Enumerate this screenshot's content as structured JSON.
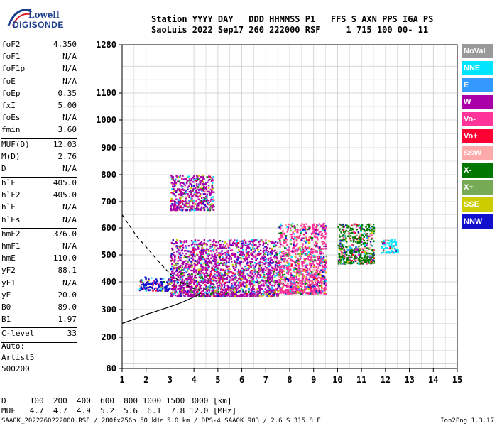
{
  "logo": {
    "line1": "Lowell",
    "line2": "DIGISONDE"
  },
  "header": {
    "line1": "Station YYYY DAY   DDD HHMMSS P1   FFS S AXN PPS IGA PS",
    "line2": "SaoLuis 2022 Sep17 260 222000 RSF     1 715 100 00- 11"
  },
  "params": [
    {
      "k": "foF2",
      "v": "4.350"
    },
    {
      "k": "foF1",
      "v": "N/A"
    },
    {
      "k": "foF1p",
      "v": "N/A"
    },
    {
      "k": "foE",
      "v": "N/A"
    },
    {
      "k": "foEp",
      "v": "0.35"
    },
    {
      "k": "fxI",
      "v": "5.00"
    },
    {
      "k": "foEs",
      "v": "N/A"
    },
    {
      "k": "fmin",
      "v": "3.60"
    },
    {
      "sep": true
    },
    {
      "k": "MUF(D)",
      "v": "12.03"
    },
    {
      "k": "M(D)",
      "v": "2.76"
    },
    {
      "k": "D",
      "v": "N/A"
    },
    {
      "sep": true
    },
    {
      "k": "h`F",
      "v": "405.0"
    },
    {
      "k": "h`F2",
      "v": "405.0"
    },
    {
      "k": "h`E",
      "v": "N/A"
    },
    {
      "k": "h`Es",
      "v": "N/A"
    },
    {
      "sep": true
    },
    {
      "k": "hmF2",
      "v": "376.0"
    },
    {
      "k": "hmF1",
      "v": "N/A"
    },
    {
      "k": "hmE",
      "v": "110.0"
    },
    {
      "k": "yF2",
      "v": "88.1"
    },
    {
      "k": "yF1",
      "v": "N/A"
    },
    {
      "k": "yE",
      "v": "20.0"
    },
    {
      "k": "B0",
      "v": "89.0"
    },
    {
      "k": "B1",
      "v": "1.97"
    },
    {
      "sep": true
    },
    {
      "k": "C-level",
      "v": "33"
    },
    {
      "sep": true
    }
  ],
  "notes": {
    "auto": "Auto:",
    "artist": "Artist5",
    "code": "500200"
  },
  "footer": {
    "d_line": "D     100  200  400  600  800 1000 1500 3000 [km]",
    "muf_line": "MUF   4.7  4.7  4.9  5.2  5.6  6.1  7.8 12.0 [MHz]",
    "file_line": "SAA0K_2022260222000.RSF / 280fx256h 50 kHz 5.0 km / DPS-4 SAA0K 903 / 2.6 S 315.8 E",
    "version": "Ion2Png 1.3.17"
  },
  "legend": [
    {
      "label": "NoVal",
      "color": "#999999"
    },
    {
      "label": "NNE",
      "color": "#00e5ff"
    },
    {
      "label": "E",
      "color": "#3399ff"
    },
    {
      "label": "W",
      "color": "#aa00aa"
    },
    {
      "label": "Vo-",
      "color": "#ff3399"
    },
    {
      "label": "Vo+",
      "color": "#ff0033"
    },
    {
      "label": "SSW",
      "color": "#ffaaaa"
    },
    {
      "label": "X-",
      "color": "#007700"
    },
    {
      "label": "X+",
      "color": "#77aa55"
    },
    {
      "label": "SSE",
      "color": "#cccc00"
    },
    {
      "label": "NNW",
      "color": "#1111cc"
    }
  ],
  "chart_data": {
    "type": "scatter",
    "title": "",
    "xlabel": "",
    "ylabel": "",
    "xlim": [
      1,
      15
    ],
    "ylim": [
      80,
      1280
    ],
    "xticks": [
      1,
      2,
      3,
      4,
      5,
      6,
      7,
      8,
      9,
      10,
      11,
      12,
      13,
      14,
      15
    ],
    "yticks": [
      80,
      200,
      300,
      400,
      500,
      600,
      700,
      800,
      900,
      1000,
      1100,
      1280
    ],
    "y_scale": "custom (compressed near 80 and 1280)",
    "grid": true,
    "legend_position": "right",
    "ordinary_trace": [
      [
        1.0,
        250
      ],
      [
        1.5,
        265
      ],
      [
        2.0,
        282
      ],
      [
        2.5,
        296
      ],
      [
        3.0,
        310
      ],
      [
        3.5,
        326
      ],
      [
        4.0,
        345
      ],
      [
        4.3,
        360
      ]
    ],
    "dashed_profile": [
      [
        1.0,
        650
      ],
      [
        1.3,
        610
      ],
      [
        1.6,
        570
      ],
      [
        2.0,
        530
      ],
      [
        2.5,
        478
      ],
      [
        3.0,
        430
      ],
      [
        3.5,
        396
      ],
      [
        4.0,
        375
      ],
      [
        4.3,
        370
      ]
    ],
    "echo_regions": [
      {
        "x": [
          1.7,
          3.0
        ],
        "y": [
          370,
          420
        ],
        "main": "NNW"
      },
      {
        "x": [
          3.0,
          4.5
        ],
        "y": [
          350,
          560
        ],
        "main": "W"
      },
      {
        "x": [
          4.5,
          7.5
        ],
        "y": [
          350,
          560
        ],
        "main": "W"
      },
      {
        "x": [
          7.5,
          9.5
        ],
        "y": [
          360,
          620
        ],
        "main": "Vo-"
      },
      {
        "x": [
          10.0,
          11.5
        ],
        "y": [
          470,
          620
        ],
        "main": "X-"
      },
      {
        "x": [
          3.0,
          4.8
        ],
        "y": [
          670,
          800
        ],
        "main": "W"
      },
      {
        "x": [
          11.8,
          12.5
        ],
        "y": [
          510,
          560
        ],
        "main": "NNE"
      }
    ]
  }
}
